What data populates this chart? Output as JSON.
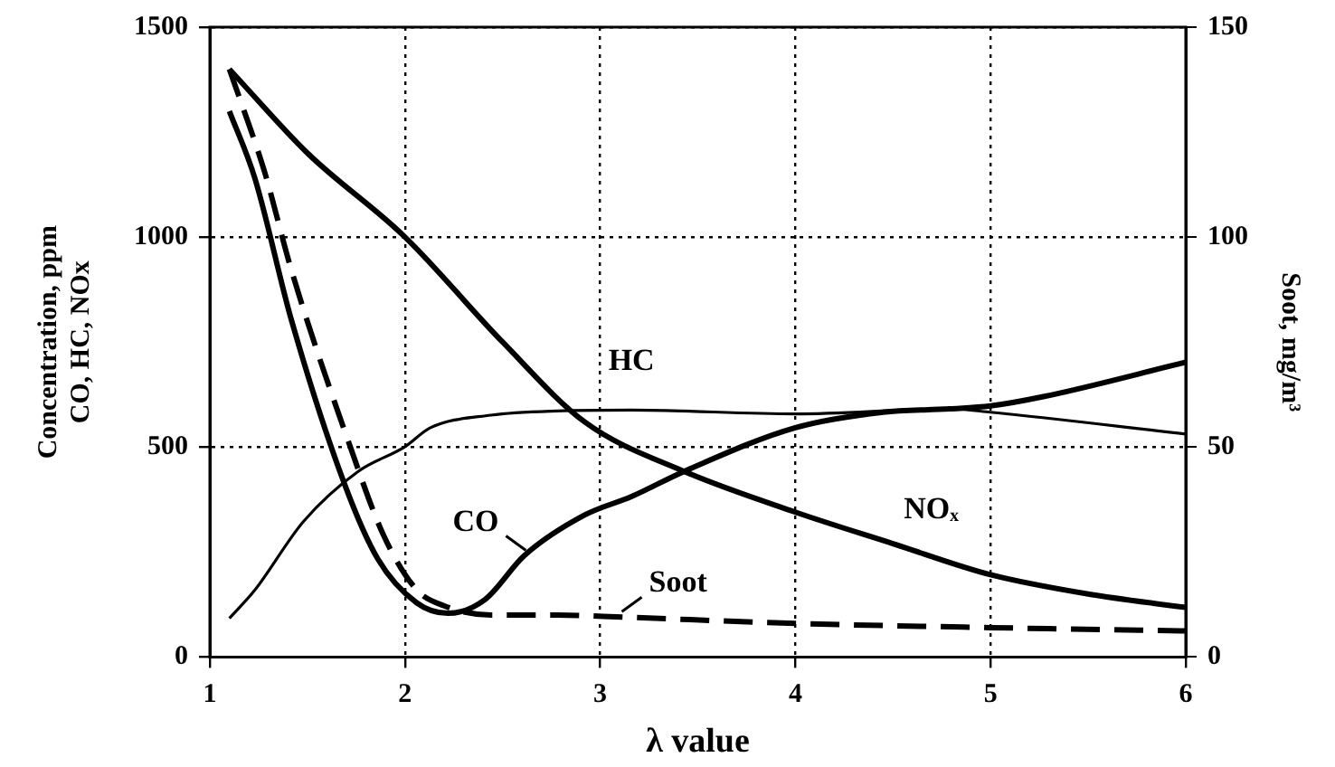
{
  "chart_data": {
    "type": "line",
    "xlabel": "λ value",
    "ylabel": [
      "Concentration, ppm",
      "CO, HC, NOx"
    ],
    "y2label": "Soot, mg/m³",
    "xlim": [
      1,
      6
    ],
    "xticks": [
      1,
      2,
      3,
      4,
      5,
      6
    ],
    "ylim": [
      0,
      1500
    ],
    "yticks": [
      0,
      500,
      1000,
      1500
    ],
    "y2lim": [
      0,
      150
    ],
    "y2ticks": [
      0,
      50,
      100,
      150
    ],
    "grid": true,
    "legend": false,
    "marker": "none",
    "series": [
      {
        "name": "CO",
        "color": "#000000",
        "line_style": "solid",
        "x": [
          1.1,
          1.23,
          1.42,
          1.69,
          1.86,
          2.06,
          2.22,
          2.41,
          2.61,
          2.92,
          3.16,
          3.43,
          4,
          4.45,
          4.79,
          5,
          5.27,
          6
        ],
        "values": [
          1300,
          1141,
          799,
          412,
          234,
          129,
          104,
          137,
          241,
          338,
          382,
          442,
          546,
          583,
          591,
          598,
          620,
          702
        ]
      },
      {
        "name": "HC",
        "color": "#000000",
        "line_style": "solid",
        "x": [
          1.1,
          1.23,
          1.48,
          1.76,
          2,
          2.13,
          2.44,
          2.78,
          3.16,
          4,
          4.79,
          5,
          6
        ],
        "values": [
          92,
          159,
          323,
          442,
          501,
          546,
          576,
          586,
          588,
          579,
          591,
          583,
          531
        ]
      },
      {
        "name": "NOₓ",
        "color": "#000000",
        "line_style": "solid",
        "x": [
          1.1,
          1.5,
          2,
          2.5,
          2.92,
          3.43,
          4,
          4.5,
          5,
          5.5,
          6
        ],
        "values": [
          1400,
          1200,
          1000,
          750,
          560,
          442,
          345,
          270,
          196,
          150,
          118
        ]
      },
      {
        "name": "Soot",
        "color": "#000000",
        "line_style": "dashed",
        "axis": "y2",
        "x": [
          1.1,
          1.28,
          1.42,
          1.72,
          1.89,
          2.06,
          2.2,
          2.44,
          2.78,
          3.12,
          4,
          5,
          6
        ],
        "values": [
          140,
          115.6,
          91.8,
          50,
          29,
          16,
          12.2,
          10,
          10,
          9.5,
          8,
          7,
          6.2
        ]
      }
    ]
  }
}
